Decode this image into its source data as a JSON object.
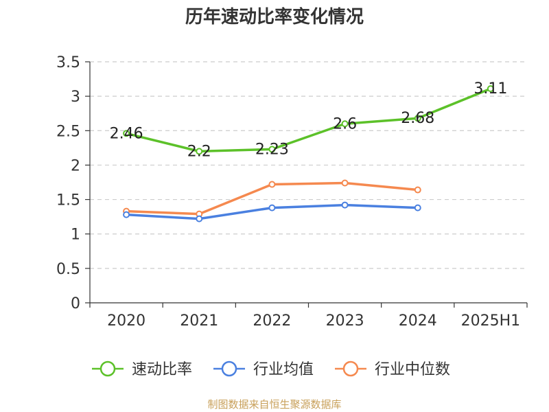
{
  "chart_data": {
    "type": "line",
    "title": "历年速动比率变化情况",
    "categories": [
      "2020",
      "2021",
      "2022",
      "2023",
      "2024",
      "2025H1"
    ],
    "ylim": [
      0,
      3.5
    ],
    "yticks": [
      "0",
      "0.5",
      "1",
      "1.5",
      "2",
      "2.5",
      "3",
      "3.5"
    ],
    "grid": true,
    "legend_position": "bottom",
    "series": [
      {
        "name": "速动比率",
        "color": "#5cc129",
        "values": [
          2.46,
          2.2,
          2.23,
          2.6,
          2.68,
          3.11
        ],
        "labels": [
          "2.46",
          "2.2",
          "2.23",
          "2.6",
          "2.68",
          "3.11"
        ]
      },
      {
        "name": "行业均值",
        "color": "#4a80e0",
        "values": [
          1.28,
          1.22,
          1.38,
          1.42,
          1.38,
          null
        ]
      },
      {
        "name": "行业中位数",
        "color": "#f5894f",
        "values": [
          1.33,
          1.29,
          1.72,
          1.74,
          1.64,
          null
        ]
      }
    ]
  },
  "source": "制图数据来自恒生聚源数据库"
}
